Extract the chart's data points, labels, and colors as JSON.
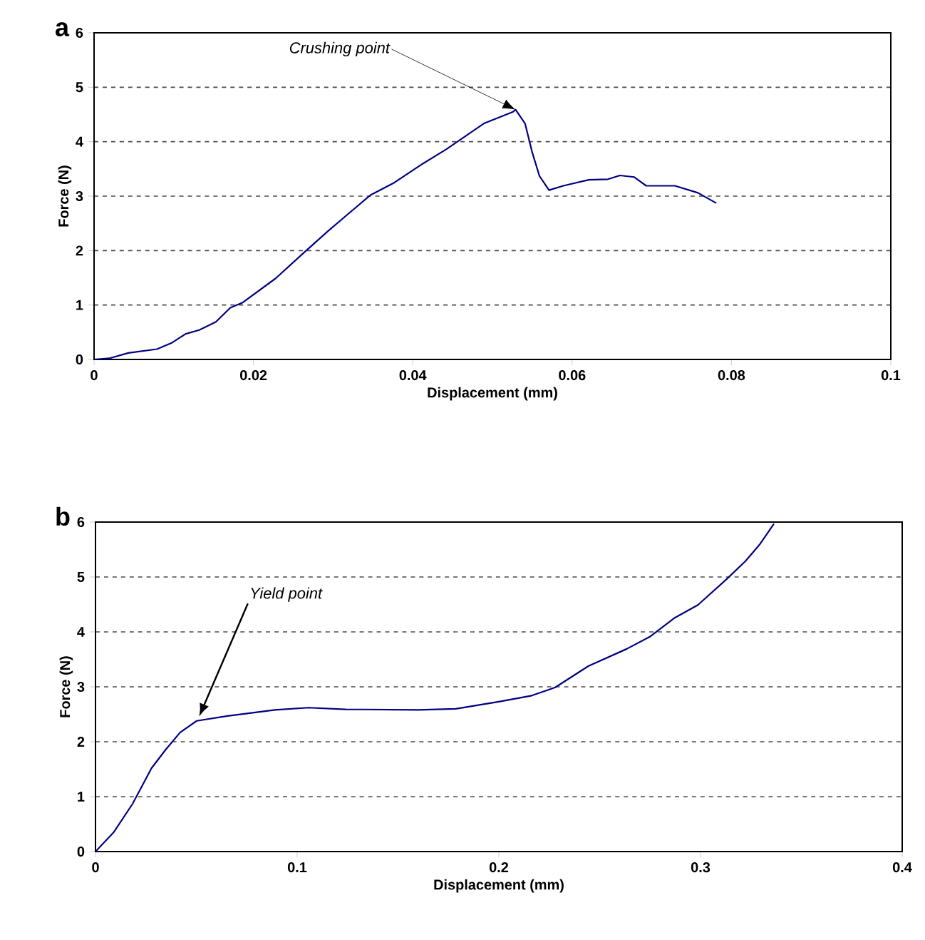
{
  "chart_data": [
    {
      "type": "line",
      "title": "a",
      "xlabel": "Displacement (mm)",
      "ylabel": "Force (N)",
      "xlim": [
        0,
        0.1
      ],
      "ylim": [
        0,
        6
      ],
      "xticks": [
        0,
        0.02,
        0.04,
        0.06,
        0.08,
        0.1
      ],
      "yticks": [
        0,
        1,
        2,
        3,
        4,
        5,
        6
      ],
      "grid": "y",
      "series": [
        {
          "color": "#000080",
          "x": [
            0,
            0.0019,
            0.0043,
            0.0079,
            0.0097,
            0.0115,
            0.0132,
            0.0153,
            0.0171,
            0.0186,
            0.0228,
            0.0264,
            0.0293,
            0.0317,
            0.0347,
            0.0377,
            0.0413,
            0.0442,
            0.049,
            0.0526,
            0.0529,
            0.0541,
            0.055,
            0.0559,
            0.0571,
            0.0589,
            0.0621,
            0.0645,
            0.066,
            0.0678,
            0.0693,
            0.0729,
            0.0758,
            0.0781
          ],
          "values": [
            0,
            0.02,
            0.12,
            0.19,
            0.3,
            0.47,
            0.54,
            0.69,
            0.95,
            1.04,
            1.49,
            1.97,
            2.35,
            2.65,
            3.02,
            3.25,
            3.6,
            3.86,
            4.34,
            4.55,
            4.59,
            4.33,
            3.8,
            3.37,
            3.11,
            3.19,
            3.3,
            3.31,
            3.38,
            3.35,
            3.19,
            3.19,
            3.06,
            2.87
          ]
        }
      ],
      "annotations": [
        {
          "text": "Crushing point",
          "x": 0.0529,
          "y": 4.59
        }
      ]
    },
    {
      "type": "line",
      "title": "b",
      "xlabel": "Displacement (mm)",
      "ylabel": "Force (N)",
      "xlim": [
        0,
        0.4
      ],
      "ylim": [
        0,
        6
      ],
      "xticks": [
        0,
        0.1,
        0.2,
        0.3,
        0.4
      ],
      "yticks": [
        0,
        1,
        2,
        3,
        4,
        5,
        6
      ],
      "grid": "y",
      "series": [
        {
          "color": "#000080",
          "x": [
            0,
            0.009,
            0.0184,
            0.0278,
            0.0349,
            0.042,
            0.0502,
            0.0655,
            0.089,
            0.1056,
            0.124,
            0.16,
            0.1786,
            0.2,
            0.2163,
            0.228,
            0.2445,
            0.2634,
            0.2752,
            0.2869,
            0.2987,
            0.3129,
            0.3223,
            0.3293,
            0.3364
          ],
          "values": [
            0,
            0.35,
            0.87,
            1.52,
            1.86,
            2.17,
            2.38,
            2.47,
            2.58,
            2.62,
            2.59,
            2.58,
            2.6,
            2.73,
            2.84,
            2.99,
            3.38,
            3.69,
            3.92,
            4.25,
            4.49,
            4.96,
            5.29,
            5.59,
            5.97
          ]
        }
      ],
      "annotations": [
        {
          "text": "Yield point",
          "x": 0.0514,
          "y": 2.46
        }
      ]
    }
  ]
}
